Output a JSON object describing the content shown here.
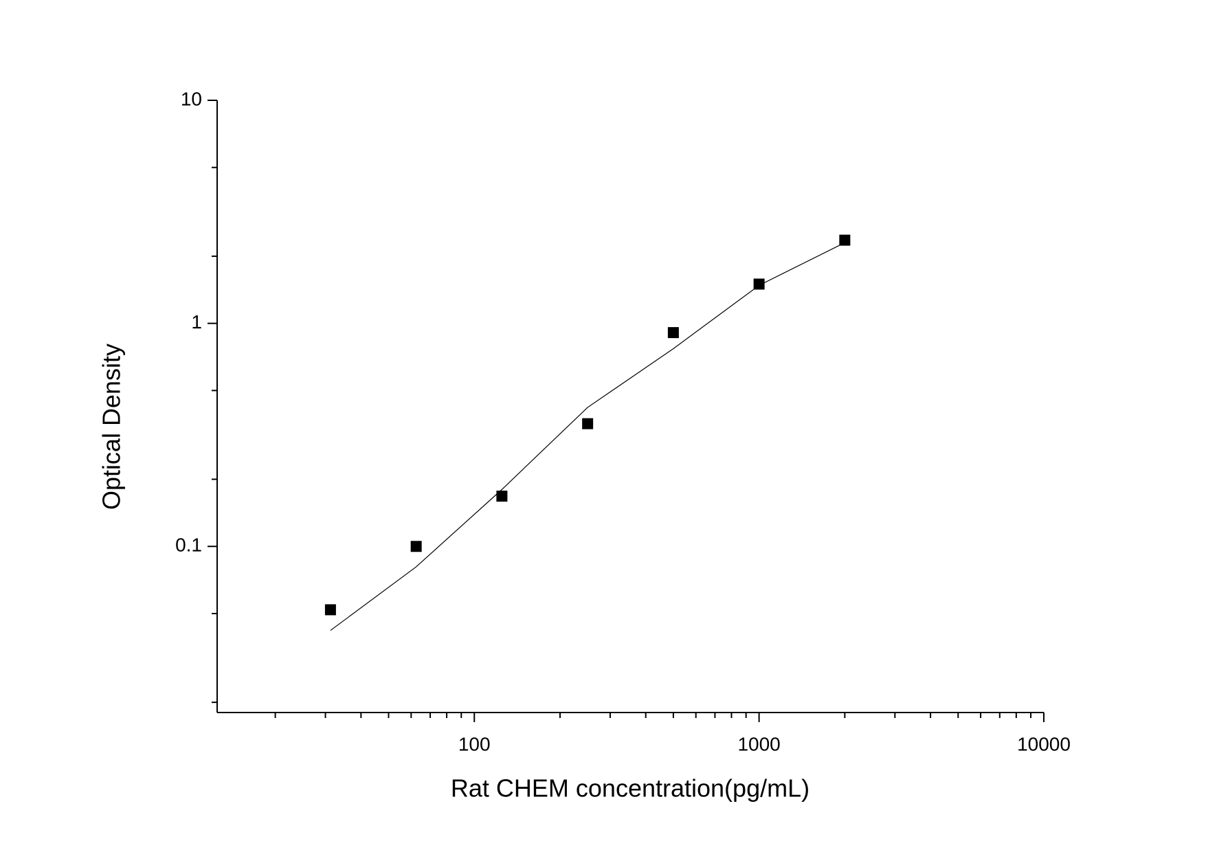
{
  "chart_data": {
    "type": "scatter",
    "x_label": "Rat CHEM concentration(pg/mL)",
    "y_label": "Optical Density",
    "x_log": true,
    "y_log": true,
    "xlim": [
      12.5,
      10000
    ],
    "ylim": [
      0.018,
      10
    ],
    "xticks": [
      100,
      1000,
      10000
    ],
    "yticks": [
      0.1,
      1,
      10
    ],
    "xminor": [
      20,
      30,
      40,
      50,
      60,
      70,
      80,
      90,
      200,
      300,
      400,
      500,
      600,
      700,
      800,
      900,
      2000,
      3000,
      4000,
      5000,
      6000,
      7000,
      8000,
      9000
    ],
    "yminor": [
      0.02,
      0.05,
      0.2,
      0.5,
      2,
      5
    ],
    "x": [
      31.25,
      62.5,
      125,
      250,
      500,
      1000,
      2000
    ],
    "series": [
      {
        "color": "#000000",
        "values": [
          0.052,
          0.1,
          0.168,
          0.355,
          0.909,
          1.5,
          2.36
        ]
      }
    ],
    "fit": {
      "color": "#000000",
      "x": [
        31.25,
        62.5,
        125,
        250,
        500,
        1000,
        2000
      ],
      "values": [
        0.042,
        0.081,
        0.18,
        0.42,
        0.77,
        1.48,
        2.3
      ]
    }
  }
}
